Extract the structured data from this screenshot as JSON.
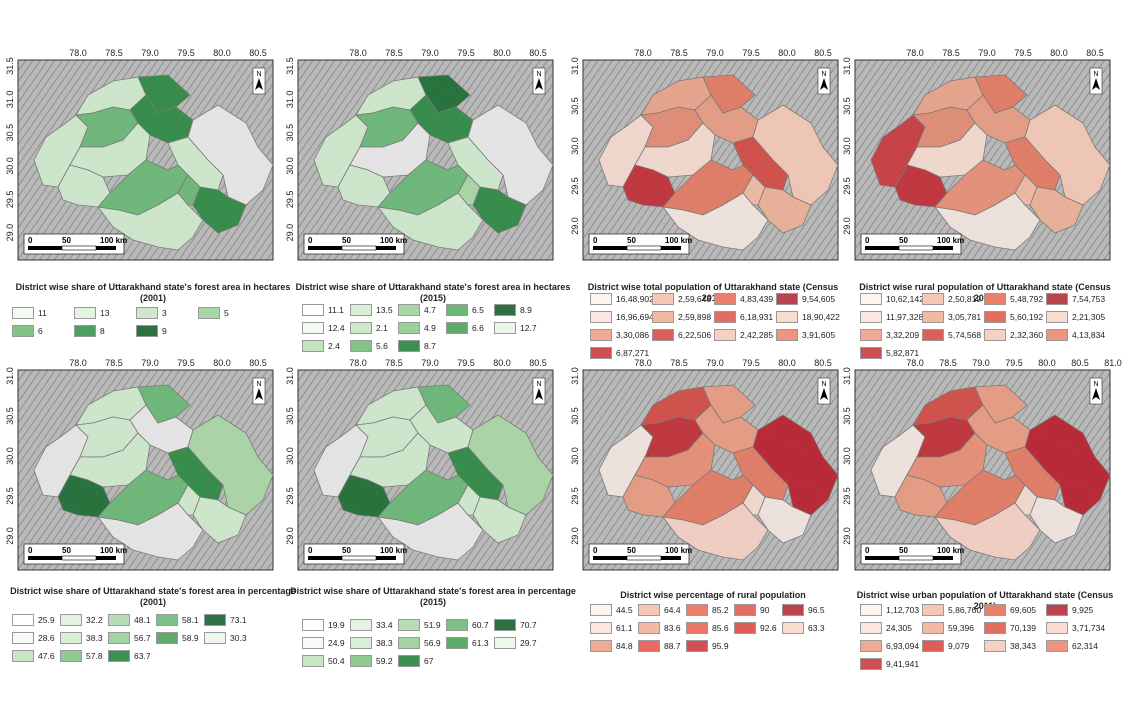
{
  "north_label": "N",
  "scale_ticks": [
    "0",
    "50",
    "100 km"
  ],
  "panels": [
    {
      "title": "District wise share of Uttarakhand state's forest area in hectares (2001)",
      "x_ticks": [
        "78.0",
        "78.5",
        "79.0",
        "79.5",
        "80.0",
        "80.5"
      ],
      "y_ticks": [
        "31.5",
        "31.0",
        "30.5",
        "30.0",
        "29.5",
        "29.0"
      ],
      "fills": [
        "#cfe8cb",
        "#cfe8cb",
        "#6bb776",
        "#2f8a44",
        "#2f8a44",
        "#cfe8cb",
        "#e7e7e7",
        "#cfe8cb",
        "#cfe8cb",
        "#6bb776",
        "#2f8a44",
        "#cfe8cb",
        "#6bb776"
      ],
      "legend": [
        {
          "label": "11",
          "color": "#f4faf3"
        },
        {
          "label": "13",
          "color": "#e5f3e2"
        },
        {
          "label": "3",
          "color": "#cfe8cb"
        },
        {
          "label": "5",
          "color": "#a9d6a7"
        },
        {
          "label": "6",
          "color": "#82c38a"
        },
        {
          "label": "8",
          "color": "#4c9f60"
        },
        {
          "label": "9",
          "color": "#2e7041"
        }
      ]
    },
    {
      "title": "District wise share of Uttarakhand state's forest area in hectares (2015)",
      "x_ticks": [
        "78.0",
        "78.5",
        "79.0",
        "79.5",
        "80.0",
        "80.5"
      ],
      "y_ticks": [
        "31.5",
        "31.0",
        "30.5",
        "30.0",
        "29.5",
        "29.0"
      ],
      "fills": [
        "#cfe8cb",
        "#cfe8cb",
        "#6bb776",
        "#1e6e36",
        "#2f8a44",
        "#e7e7e7",
        "#e7e7e7",
        "#cfe8cb",
        "#cfe8cb",
        "#6bb776",
        "#2f8a44",
        "#cfe8cb",
        "#a9d6a7"
      ],
      "legend": [
        {
          "label": "11.1",
          "color": "#ffffff"
        },
        {
          "label": "13.5",
          "color": "#d9eed6"
        },
        {
          "label": "4.7",
          "color": "#a9d6a7"
        },
        {
          "label": "6.5",
          "color": "#6bb776"
        },
        {
          "label": "8.9",
          "color": "#2e7041"
        },
        {
          "label": "12.4",
          "color": "#f4faf3"
        },
        {
          "label": "2.1",
          "color": "#cfe8cb"
        },
        {
          "label": "4.9",
          "color": "#9bd09b"
        },
        {
          "label": "6.6",
          "color": "#5eab6c"
        },
        {
          "label": "12.7",
          "color": "#eaf6e8"
        },
        {
          "label": "2.4",
          "color": "#c3e3bf"
        },
        {
          "label": "5.6",
          "color": "#82c38a"
        },
        {
          "label": "8.7",
          "color": "#3d8f52"
        }
      ]
    },
    {
      "title": "District wise total population of Uttarakhand state (Census 2011)",
      "x_ticks": [
        "78.0",
        "78.5",
        "79.0",
        "79.5",
        "80.0",
        "80.5"
      ],
      "y_ticks": [
        "31.0",
        "30.5",
        "30.0",
        "29.5",
        "29.0"
      ],
      "fills": [
        "#f4d9cf",
        "#e7a38a",
        "#e18b73",
        "#e27a63",
        "#e59b80",
        "#f4d9cf",
        "#f2c7b6",
        "#d24a45",
        "#c22f37",
        "#e27a63",
        "#ecae97",
        "#f0e4de",
        "#efb8a4"
      ],
      "legend": [
        {
          "label": "16,48,902",
          "color": "#fdf3ef"
        },
        {
          "label": "2,59,648",
          "color": "#f6c7b4"
        },
        {
          "label": "4,83,439",
          "color": "#eb7f6c"
        },
        {
          "label": "9,54,605",
          "color": "#b9444e"
        },
        {
          "label": "16,96,694",
          "color": "#fbe7df"
        },
        {
          "label": "2,59,898",
          "color": "#f3b9a3"
        },
        {
          "label": "6,18,931",
          "color": "#e46d61"
        },
        {
          "label": "18,90,422",
          "color": "#f8dcd0"
        },
        {
          "label": "3,30,086",
          "color": "#f0a993"
        },
        {
          "label": "6,22,506",
          "color": "#dd5e58"
        },
        {
          "label": "2,42,285",
          "color": "#f6d0c1"
        },
        {
          "label": "3,91,605",
          "color": "#ee957f"
        },
        {
          "label": "6,87,271",
          "color": "#d04f54"
        }
      ]
    },
    {
      "title": "District wise rural population of Uttarakhand state (Census 2011)",
      "x_ticks": [
        "78.0",
        "78.5",
        "79.0",
        "79.5",
        "80.0",
        "80.5"
      ],
      "y_ticks": [
        "31.0",
        "30.5",
        "30.0",
        "29.5",
        "29.0"
      ],
      "fills": [
        "#c93a3f",
        "#e7a38a",
        "#e08c73",
        "#e27a63",
        "#e59b80",
        "#f4d9cf",
        "#f2c7b6",
        "#e27a63",
        "#c22f37",
        "#e58f76",
        "#ecae97",
        "#f0e4de",
        "#efb8a4"
      ],
      "legend": [
        {
          "label": "10,62,142",
          "color": "#fdf3ef"
        },
        {
          "label": "2,50,819",
          "color": "#f6c7b4"
        },
        {
          "label": "5,48,792",
          "color": "#eb7f6c"
        },
        {
          "label": "7,54,753",
          "color": "#b9444e"
        },
        {
          "label": "11,97,328",
          "color": "#fbe7df"
        },
        {
          "label": "3,05,781",
          "color": "#f3b9a3"
        },
        {
          "label": "5,60,192",
          "color": "#e46d61"
        },
        {
          "label": "2,21,305",
          "color": "#f8dcd0"
        },
        {
          "label": "3,32,209",
          "color": "#f0a993"
        },
        {
          "label": "5,74,568",
          "color": "#dd5e58"
        },
        {
          "label": "2,32,360",
          "color": "#f6d0c1"
        },
        {
          "label": "4,13,834",
          "color": "#ee957f"
        },
        {
          "label": "5,82,871",
          "color": "#d04f54"
        }
      ]
    },
    {
      "title": "District wise share of Uttarakhand state's forest area in percentage (2001)",
      "x_ticks": [
        "78.0",
        "78.5",
        "79.0",
        "79.5",
        "80.0",
        "80.5"
      ],
      "y_ticks": [
        "31.0",
        "30.5",
        "30.0",
        "29.5",
        "29.0"
      ],
      "fills": [
        "#e7e7e7",
        "#cfe8cb",
        "#cfe8cb",
        "#6bb776",
        "#e7e7e7",
        "#cfe8cb",
        "#a9d6a7",
        "#2f8a44",
        "#1e6e36",
        "#6bb776",
        "#cfe8cb",
        "#e7e7e7",
        "#cfe8cb"
      ],
      "legend": [
        {
          "label": "25.9",
          "color": "#ffffff"
        },
        {
          "label": "32.2",
          "color": "#e5f3e2"
        },
        {
          "label": "48.1",
          "color": "#b7ddb4"
        },
        {
          "label": "58.1",
          "color": "#7fc088"
        },
        {
          "label": "73.1",
          "color": "#2e7041"
        },
        {
          "label": "28.6",
          "color": "#f7fbf6"
        },
        {
          "label": "38.3",
          "color": "#d9eed6"
        },
        {
          "label": "56.7",
          "color": "#a3d3a2"
        },
        {
          "label": "58.9",
          "color": "#5eab6c"
        },
        {
          "label": "30.3",
          "color": "#eef7ec"
        },
        {
          "label": "47.6",
          "color": "#c9e6c5"
        },
        {
          "label": "57.8",
          "color": "#8fca92"
        },
        {
          "label": "63.7",
          "color": "#3d8f52"
        }
      ]
    },
    {
      "title": "District wise share of Uttarakhand state's forest area in percentage (2015)",
      "x_ticks": [
        "78.0",
        "78.5",
        "79.0",
        "79.5",
        "80.0",
        "80.5"
      ],
      "y_ticks": [
        "31.0",
        "30.5",
        "30.0",
        "29.5",
        "29.0"
      ],
      "fills": [
        "#e7e7e7",
        "#cfe8cb",
        "#cfe8cb",
        "#6bb776",
        "#cfe8cb",
        "#cfe8cb",
        "#a9d6a7",
        "#2f8a44",
        "#1e6e36",
        "#6bb776",
        "#cfe8cb",
        "#e7e7e7",
        "#cfe8cb"
      ],
      "legend": [
        {
          "label": "19.9",
          "color": "#ffffff"
        },
        {
          "label": "33.4",
          "color": "#e5f3e2"
        },
        {
          "label": "51.9",
          "color": "#b7ddb4"
        },
        {
          "label": "60.7",
          "color": "#7fc088"
        },
        {
          "label": "70.7",
          "color": "#2e7041"
        },
        {
          "label": "24.9",
          "color": "#f7fbf6"
        },
        {
          "label": "38.3",
          "color": "#d9eed6"
        },
        {
          "label": "56.9",
          "color": "#a3d3a2"
        },
        {
          "label": "61.3",
          "color": "#5eab6c"
        },
        {
          "label": "29.7",
          "color": "#eef7ec"
        },
        {
          "label": "50.4",
          "color": "#c9e6c5"
        },
        {
          "label": "59.2",
          "color": "#8fca92"
        },
        {
          "label": "67",
          "color": "#3d8f52"
        }
      ]
    },
    {
      "title": "District wise percentage of rural population",
      "x_ticks": [
        "78.0",
        "78.5",
        "79.0",
        "79.5",
        "80.0",
        "80.5"
      ],
      "y_ticks": [
        "31.0",
        "30.5",
        "30.0",
        "29.5",
        "29.0"
      ],
      "fills": [
        "#f0e4de",
        "#d24a45",
        "#c22f37",
        "#e59b80",
        "#e59b80",
        "#e58f76",
        "#b9202e",
        "#e27a63",
        "#e59b80",
        "#e27a63",
        "#f0e4de",
        "#f2d0c3",
        "#f4d9cf"
      ],
      "legend": [
        {
          "label": "44.5",
          "color": "#fdf3ef"
        },
        {
          "label": "64.4",
          "color": "#f6c7b4"
        },
        {
          "label": "85.2",
          "color": "#eb7f6c"
        },
        {
          "label": "90",
          "color": "#e46d61"
        },
        {
          "label": "96.5",
          "color": "#b9444e"
        },
        {
          "label": "61.1",
          "color": "#fbe7df"
        },
        {
          "label": "83.6",
          "color": "#f3b9a3"
        },
        {
          "label": "85.6",
          "color": "#ea7668"
        },
        {
          "label": "92.6",
          "color": "#dd5e58"
        },
        {
          "label": "63.3",
          "color": "#f8dcd0"
        },
        {
          "label": "84.8",
          "color": "#f0a993"
        },
        {
          "label": "88.7",
          "color": "#e76a62"
        },
        {
          "label": "95.9",
          "color": "#d04f54"
        }
      ]
    },
    {
      "title": "District wise urban population of Uttarakhand state (Census 2011)",
      "x_ticks": [
        "78.0",
        "78.5",
        "79.0",
        "79.5",
        "80.0",
        "80.5",
        "81.0"
      ],
      "y_ticks": [
        "31.0",
        "30.5",
        "30.0",
        "29.5",
        "29.0"
      ],
      "fills": [
        "#f0e4de",
        "#d24a45",
        "#c22f37",
        "#e59b80",
        "#e59b80",
        "#e58f76",
        "#b9202e",
        "#e27a63",
        "#e59b80",
        "#e27a63",
        "#f0e4de",
        "#f2d0c3",
        "#f4d9cf"
      ],
      "legend": [
        {
          "label": "1,12,703",
          "color": "#fdf3ef"
        },
        {
          "label": "5,86,760",
          "color": "#f6c7b4"
        },
        {
          "label": "69,605",
          "color": "#eb7f6c"
        },
        {
          "label": "9,925",
          "color": "#b9444e"
        },
        {
          "label": "24,305",
          "color": "#fbe7df"
        },
        {
          "label": "59,396",
          "color": "#f3b9a3"
        },
        {
          "label": "70,139",
          "color": "#e46d61"
        },
        {
          "label": "3,71,734",
          "color": "#f8dcd0"
        },
        {
          "label": "6,93,094",
          "color": "#f0a993"
        },
        {
          "label": "9,079",
          "color": "#dd5e58"
        },
        {
          "label": "38,343",
          "color": "#f6d0c1"
        },
        {
          "label": "62,314",
          "color": "#ee957f"
        },
        {
          "label": "9,41,941",
          "color": "#d04f54"
        }
      ]
    }
  ]
}
